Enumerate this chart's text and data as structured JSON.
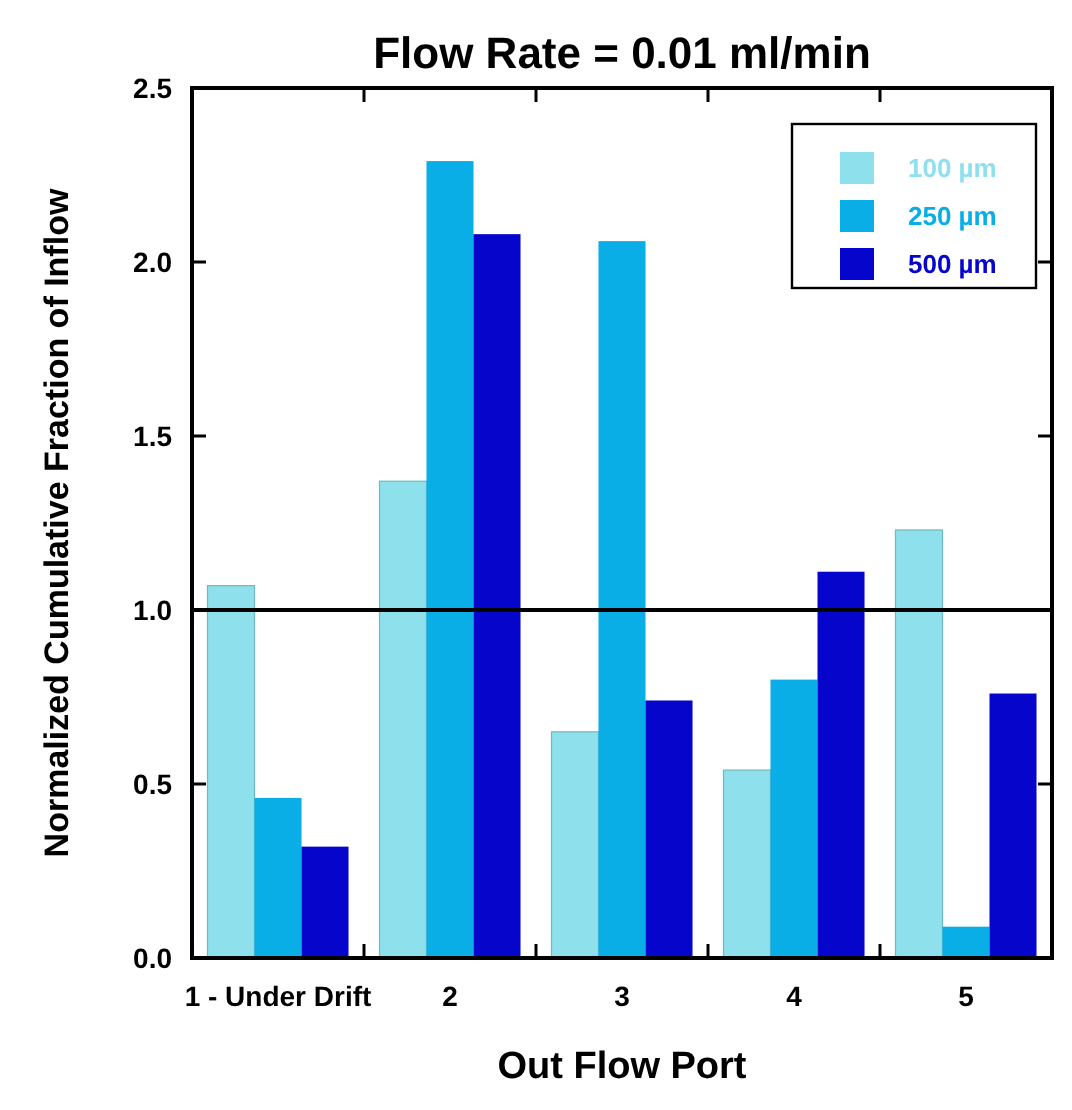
{
  "chart_data": {
    "type": "bar",
    "title": "Flow Rate = 0.01 ml/min",
    "xlabel": "Out Flow Port",
    "ylabel": "Normalized Cumulative Fraction of Inflow",
    "categories": [
      "1 - Under Drift",
      "2",
      "3",
      "4",
      "5"
    ],
    "series": [
      {
        "name": "100 µm",
        "color": "#8ee0ec",
        "values": [
          1.07,
          1.37,
          0.65,
          0.54,
          1.23
        ]
      },
      {
        "name": "250 µm",
        "color": "#0aaee6",
        "values": [
          0.46,
          2.29,
          2.06,
          0.8,
          0.09
        ]
      },
      {
        "name": "500 µm",
        "color": "#0505cc",
        "values": [
          0.32,
          2.08,
          0.74,
          1.11,
          0.76
        ]
      }
    ],
    "ylim": [
      0,
      2.5
    ],
    "yticks": [
      {
        "value": 0,
        "label": "0.0"
      },
      0.5,
      {
        "value": 1,
        "label": "1.0"
      },
      1.5,
      {
        "value": 2,
        "label": "2.0"
      },
      2.5
    ],
    "ref_lines": [
      {
        "axis": "y",
        "value": 1,
        "color": "#000000"
      }
    ],
    "grid": false,
    "legend": "top right"
  }
}
